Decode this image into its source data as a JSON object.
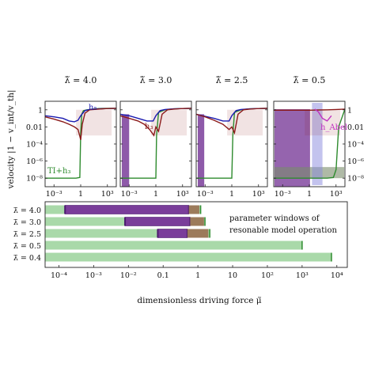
{
  "figure": {
    "ylabel": "velocity  |1 − v_int/v_th|",
    "xlabel": "dimensionless driving force μ̃",
    "legend_text_line1": "parameter windows of",
    "legend_text_line2": "resonable model operation"
  },
  "colors": {
    "green": "#2e8b2e",
    "green_light": "#a9d9a9",
    "purple": "#7a3d9a",
    "purple_edge": "#4b1a6e",
    "brown": "#9c7b5b",
    "red": "#8b1a1a",
    "blue": "#1a1ab0",
    "magenta": "#c030c0"
  },
  "chart_data": [
    {
      "type": "line",
      "title": "λ̃ = 4.0",
      "x_scale": "log",
      "y_scale": "log",
      "xlim": [
        0.0001,
        10000
      ],
      "ylim": [
        1e-09,
        10
      ],
      "x_ticks": [
        "10⁻³",
        "1",
        "10³"
      ],
      "y_ticks": [
        "1",
        "0.01",
        "10⁻⁴",
        "10⁻⁶",
        "10⁻⁸"
      ],
      "annotations": [
        "h₅",
        "TI+h₃"
      ],
      "series": [
        {
          "name": "TI+h₃",
          "color": "green",
          "x": [
            0.0001,
            0.01,
            0.3,
            0.8,
            1.0,
            1.3,
            2,
            5,
            20,
            100,
            1000,
            10000
          ],
          "y": [
            1e-08,
            1e-08,
            1e-08,
            1.2e-08,
            0.002,
            0.3,
            0.8,
            1.0,
            1.2,
            1.4,
            1.5,
            1.5
          ]
        },
        {
          "color": "blue",
          "x": [
            0.0001,
            0.001,
            0.01,
            0.05,
            0.2,
            0.5,
            1,
            3,
            10,
            100,
            1000,
            10000
          ],
          "y": [
            0.2,
            0.15,
            0.1,
            0.05,
            0.04,
            0.06,
            0.2,
            0.8,
            1.1,
            1.3,
            1.4,
            1.5
          ]
        },
        {
          "color": "red",
          "x": [
            0.0001,
            0.001,
            0.01,
            0.05,
            0.2,
            0.5,
            0.8,
            1,
            1.5,
            3,
            10,
            100,
            1000,
            10000
          ],
          "y": [
            0.15,
            0.08,
            0.04,
            0.02,
            0.01,
            0.005,
            0.0008,
            0.0003,
            0.02,
            0.4,
            1.0,
            1.2,
            1.4,
            1.5
          ]
        }
      ]
    },
    {
      "type": "line",
      "title": "λ̃ = 3.0",
      "x_scale": "log",
      "y_scale": "log",
      "xlim": [
        0.0001,
        10000
      ],
      "ylim": [
        1e-09,
        10
      ],
      "x_ticks": [
        "10⁻³",
        "1",
        "10³"
      ],
      "annotations": [
        "h₃"
      ],
      "series": [
        {
          "color": "green",
          "x": [
            0.0001,
            0.01,
            0.5,
            1.0,
            1.2,
            2,
            10,
            100,
            1000,
            10000
          ],
          "y": [
            1e-08,
            1e-08,
            1e-08,
            1e-08,
            0.001,
            0.5,
            1.0,
            1.3,
            1.4,
            1.5
          ]
        },
        {
          "color": "blue",
          "x": [
            0.0001,
            0.001,
            0.01,
            0.1,
            0.5,
            1,
            3,
            10,
            100,
            1000,
            10000
          ],
          "y": [
            0.3,
            0.2,
            0.1,
            0.05,
            0.05,
            0.2,
            0.8,
            1.1,
            1.3,
            1.4,
            1.5
          ]
        },
        {
          "color": "red",
          "x": [
            0.0001,
            0.001,
            0.01,
            0.05,
            0.2,
            0.6,
            1,
            2,
            5,
            20,
            100,
            1000,
            10000
          ],
          "y": [
            0.2,
            0.1,
            0.05,
            0.02,
            0.005,
            0.001,
            0.01,
            0.003,
            0.3,
            1.0,
            1.2,
            1.4,
            1.5
          ]
        }
      ]
    },
    {
      "type": "line",
      "title": "λ̃ = 2.5",
      "x_scale": "log",
      "y_scale": "log",
      "xlim": [
        0.0001,
        10000
      ],
      "ylim": [
        1e-09,
        10
      ],
      "x_ticks": [
        "10⁻³",
        "1",
        "10³"
      ],
      "series": [
        {
          "color": "green",
          "x": [
            0.0001,
            0.01,
            1.0,
            1.3,
            2,
            10,
            100,
            1000,
            10000
          ],
          "y": [
            1e-08,
            1e-08,
            1e-08,
            0.001,
            0.5,
            1.0,
            1.3,
            1.4,
            1.5
          ]
        },
        {
          "color": "blue",
          "x": [
            0.0001,
            0.01,
            0.1,
            0.5,
            1,
            3,
            10,
            100,
            1000,
            10000
          ],
          "y": [
            0.3,
            0.1,
            0.05,
            0.05,
            0.2,
            0.8,
            1.1,
            1.3,
            1.4,
            1.5
          ]
        },
        {
          "color": "red",
          "x": [
            0.0001,
            0.001,
            0.01,
            0.1,
            0.5,
            1,
            2,
            5,
            20,
            100,
            1000,
            10000
          ],
          "y": [
            0.3,
            0.15,
            0.06,
            0.02,
            0.005,
            0.01,
            0.002,
            0.3,
            1.0,
            1.2,
            1.4,
            1.5
          ]
        }
      ]
    },
    {
      "type": "line",
      "title": "λ̃ = 0.5",
      "x_scale": "log",
      "y_scale": "log",
      "xlim": [
        0.0001,
        10000
      ],
      "ylim": [
        1e-09,
        10
      ],
      "x_ticks": [
        "10⁻³",
        "1",
        "10³"
      ],
      "annotations": [
        "h_Abel"
      ],
      "series": [
        {
          "color": "green",
          "x": [
            0.0001,
            0.01,
            1,
            100,
            500,
            1000,
            2000,
            10000
          ],
          "y": [
            1e-08,
            1e-08,
            1e-08,
            1e-08,
            1.2e-08,
            1e-07,
            0.01,
            1.2
          ]
        },
        {
          "color": "red",
          "x": [
            0.0001,
            0.01,
            1,
            10,
            100,
            1000,
            10000
          ],
          "y": [
            0.9,
            0.9,
            0.9,
            0.95,
            1.0,
            1.1,
            1.2
          ]
        },
        {
          "color": "magenta",
          "x": [
            4,
            10,
            30,
            100,
            300
          ],
          "y": [
            1.2,
            0.6,
            0.1,
            0.05,
            0.2
          ]
        }
      ]
    },
    {
      "type": "bar",
      "orientation": "horizontal",
      "x_scale": "log",
      "xlim": [
        4e-05,
        20000
      ],
      "categories": [
        "λ̃ = 4.0",
        "λ̃ = 3.0",
        "λ̃ = 2.5",
        "λ̃ = 0.5",
        "λ̃ = 0.4"
      ],
      "x_ticks": [
        "10⁻⁴",
        "10⁻³",
        "10⁻²",
        "0.1",
        "1",
        "10",
        "10²",
        "10³",
        "10⁴"
      ],
      "series": [
        {
          "color": "green_light",
          "ranges": [
            [
              4e-05,
              1.2
            ],
            [
              4e-05,
              1.6
            ],
            [
              4e-05,
              2.2
            ],
            [
              4e-05,
              1000
            ],
            [
              4e-05,
              7000
            ]
          ],
          "end_marks": [
            1.2,
            1.6,
            2.2,
            1000,
            7000
          ]
        },
        {
          "color": "purple",
          "ranges": [
            [
              0.00015,
              0.55
            ],
            [
              0.008,
              0.6
            ],
            [
              0.07,
              0.5
            ],
            null,
            null
          ]
        },
        {
          "color": "brown",
          "ranges": [
            [
              0.55,
              1.1
            ],
            [
              0.6,
              1.5
            ],
            [
              0.5,
              2.0
            ],
            null,
            null
          ]
        }
      ]
    }
  ]
}
